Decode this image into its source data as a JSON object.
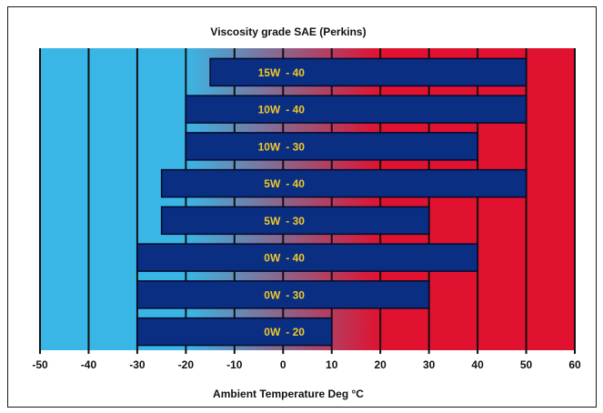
{
  "chart_data": {
    "type": "bar",
    "orientation": "horizontal",
    "title": "Viscosity grade SAE (Perkins)",
    "xlabel": "Ambient Temperature Deg °C",
    "xlim": [
      -50,
      60
    ],
    "xticks": [
      -50,
      -40,
      -30,
      -20,
      -10,
      0,
      10,
      20,
      30,
      40,
      50,
      60
    ],
    "categories": [
      "15W - 40",
      "10W - 40",
      "10W - 30",
      "5W - 40",
      "5W - 30",
      "0W - 40",
      "0W - 30",
      "0W - 20"
    ],
    "ranges": [
      {
        "label_left": "15W",
        "label_right": "- 40",
        "min": -15,
        "max": 50
      },
      {
        "label_left": "10W",
        "label_right": "- 40",
        "min": -20,
        "max": 50
      },
      {
        "label_left": "10W",
        "label_right": "- 30",
        "min": -20,
        "max": 40
      },
      {
        "label_left": "5W",
        "label_right": "- 40",
        "min": -25,
        "max": 50
      },
      {
        "label_left": "5W",
        "label_right": "- 30",
        "min": -25,
        "max": 30
      },
      {
        "label_left": "0W",
        "label_right": "- 40",
        "min": -30,
        "max": 40
      },
      {
        "label_left": "0W",
        "label_right": "- 30",
        "min": -30,
        "max": 30
      },
      {
        "label_left": "0W",
        "label_right": "- 20",
        "min": -30,
        "max": 10
      }
    ],
    "grid": true,
    "background_gradient": {
      "cold_end": -20,
      "hot_end": 20
    },
    "colors": {
      "cold": "#39b6e6",
      "hot": "#e01230",
      "bar": "#0a2e82",
      "bar_label": "#f0c82a",
      "grid": "#111111"
    }
  }
}
